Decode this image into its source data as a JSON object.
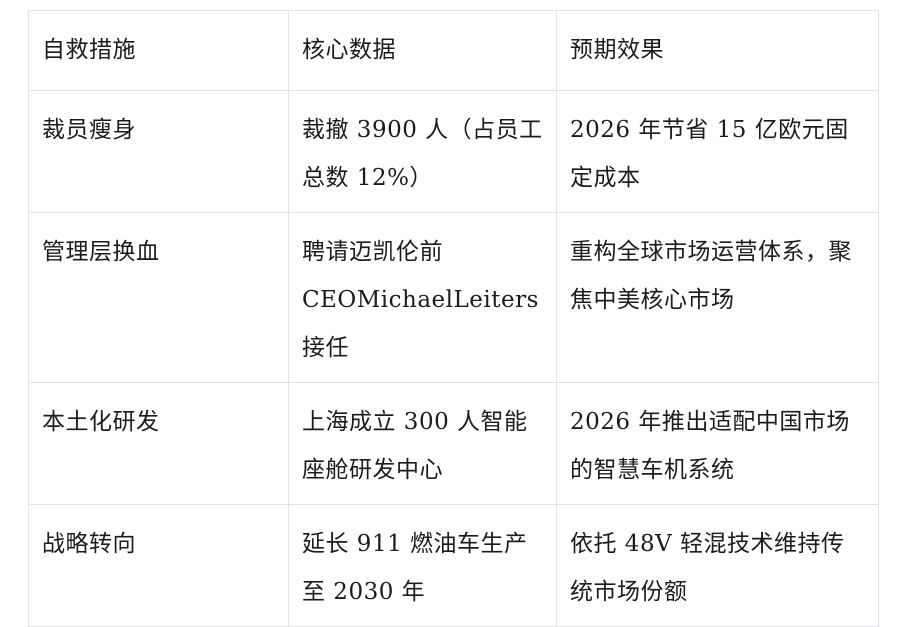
{
  "table": {
    "headers": [
      "自救措施",
      "核心数据",
      "预期效果"
    ],
    "rows": [
      [
        "裁员瘦身",
        "裁撤 3900 人（占员工总数 12%）",
        "2026 年节省 15 亿欧元固定成本"
      ],
      [
        "管理层换血",
        "聘请迈凯伦前 CEOMichaelLeiters 接任",
        "重构全球市场运营体系，聚焦中美核心市场"
      ],
      [
        "本土化研发",
        "上海成立 300 人智能座舱研发中心",
        "2026 年推出适配中国市场的智慧车机系统"
      ],
      [
        "战略转向",
        "延长 911 燃油车生产至 2030 年",
        "依托 48V 轻混技术维持传统市场份额"
      ]
    ],
    "colors": {
      "border": "#e2e3e6",
      "text": "#1c1c1c",
      "background": "#ffffff"
    }
  }
}
